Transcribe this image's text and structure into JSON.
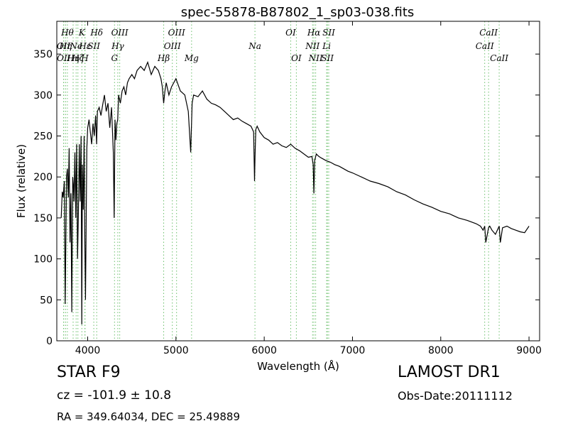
{
  "chart_data": {
    "type": "line",
    "title": "spec-55878-B87802_1_sp03-038.fits",
    "xlabel": "Wavelength (Å)",
    "ylabel": "Flux (relative)",
    "xlim": [
      3650,
      9120
    ],
    "ylim": [
      0,
      390
    ],
    "xticks": [
      4000,
      5000,
      6000,
      7000,
      8000,
      9000
    ],
    "yticks": [
      0,
      50,
      100,
      150,
      200,
      250,
      300,
      350
    ],
    "grid": false,
    "line_color": "#000000",
    "marker_line_color": "#6bbf6b",
    "series": [
      {
        "x": [
          3700,
          3712,
          3722,
          3735,
          3745,
          3760,
          3770,
          3780,
          3790,
          3800,
          3810,
          3820,
          3830,
          3838,
          3845,
          3855,
          3865,
          3875,
          3885,
          3895,
          3905,
          3915,
          3925,
          3933,
          3940,
          3950,
          3960,
          3968,
          3975,
          3990,
          4000,
          4015,
          4030,
          4045,
          4060,
          4075,
          4090,
          4101,
          4110,
          4130,
          4150,
          4170,
          4190,
          4210,
          4230,
          4250,
          4270,
          4290,
          4300,
          4310,
          4320,
          4330,
          4340,
          4350,
          4370,
          4390,
          4410,
          4430,
          4450,
          4470,
          4500,
          4530,
          4560,
          4600,
          4640,
          4680,
          4720,
          4760,
          4800,
          4830,
          4845,
          4861,
          4875,
          4890,
          4920,
          4950,
          5000,
          5050,
          5100,
          5140,
          5167,
          5175,
          5183,
          5200,
          5250,
          5300,
          5350,
          5400,
          5450,
          5500,
          5550,
          5600,
          5650,
          5700,
          5750,
          5800,
          5850,
          5880,
          5890,
          5896,
          5905,
          5920,
          5950,
          6000,
          6050,
          6100,
          6150,
          6200,
          6250,
          6300,
          6350,
          6400,
          6450,
          6500,
          6540,
          6555,
          6563,
          6572,
          6590,
          6620,
          6650,
          6700,
          6750,
          6800,
          6850,
          6900,
          6950,
          7000,
          7100,
          7200,
          7300,
          7400,
          7500,
          7600,
          7700,
          7800,
          7900,
          8000,
          8100,
          8200,
          8300,
          8400,
          8450,
          8480,
          8498,
          8510,
          8542,
          8555,
          8580,
          8620,
          8662,
          8675,
          8700,
          8750,
          8800,
          8850,
          8900,
          8950,
          9000
        ],
        "values": [
          150,
          182,
          175,
          195,
          45,
          200,
          210,
          175,
          235,
          120,
          180,
          35,
          200,
          190,
          170,
          230,
          150,
          240,
          100,
          160,
          240,
          170,
          250,
          20,
          215,
          160,
          250,
          120,
          50,
          235,
          260,
          270,
          255,
          240,
          265,
          250,
          275,
          240,
          280,
          285,
          275,
          288,
          300,
          280,
          290,
          260,
          285,
          230,
          150,
          270,
          245,
          265,
          270,
          300,
          290,
          305,
          310,
          300,
          315,
          320,
          325,
          320,
          330,
          335,
          330,
          340,
          325,
          335,
          330,
          320,
          310,
          290,
          305,
          315,
          300,
          310,
          320,
          305,
          300,
          280,
          230,
          260,
          290,
          300,
          298,
          305,
          295,
          290,
          288,
          285,
          280,
          275,
          270,
          272,
          268,
          265,
          262,
          255,
          195,
          225,
          258,
          262,
          255,
          248,
          245,
          240,
          242,
          238,
          236,
          240,
          235,
          232,
          228,
          224,
          225,
          215,
          180,
          220,
          228,
          225,
          223,
          220,
          218,
          215,
          213,
          210,
          207,
          205,
          200,
          195,
          192,
          188,
          182,
          178,
          172,
          167,
          163,
          158,
          155,
          150,
          147,
          143,
          140,
          135,
          140,
          120,
          138,
          140,
          135,
          130,
          140,
          120,
          138,
          140,
          137,
          135,
          133,
          132,
          140
        ]
      }
    ],
    "lines": [
      {
        "x": 3727,
        "label": "OII",
        "row": 2
      },
      {
        "x": 3729,
        "label": "OII",
        "row": 3
      },
      {
        "x": 3750,
        "label": "Hη",
        "row": 4
      },
      {
        "x": 3770,
        "label": "Hθ",
        "row": 1
      },
      {
        "x": 3835,
        "label": "Hη",
        "row": 3
      },
      {
        "x": 3869,
        "label": "Ne",
        "row": 2
      },
      {
        "x": 3889,
        "label": "Hζ",
        "row": 3
      },
      {
        "x": 3934,
        "label": "K",
        "row": 1
      },
      {
        "x": 3968,
        "label": "H",
        "row": 3
      },
      {
        "x": 3970,
        "label": "Hε",
        "row": 2
      },
      {
        "x": 4069,
        "label": "SII",
        "row": 2
      },
      {
        "x": 4102,
        "label": "Hδ",
        "row": 1
      },
      {
        "x": 4304,
        "label": "G",
        "row": 3
      },
      {
        "x": 4341,
        "label": "Hγ",
        "row": 2
      },
      {
        "x": 4363,
        "label": "OIII",
        "row": 1
      },
      {
        "x": 4861,
        "label": "Hβ",
        "row": 3
      },
      {
        "x": 4959,
        "label": "OIII",
        "row": 2
      },
      {
        "x": 5007,
        "label": "OIII",
        "row": 1
      },
      {
        "x": 5177,
        "label": "Mg",
        "row": 3
      },
      {
        "x": 5895,
        "label": "Na",
        "row": 2
      },
      {
        "x": 6300,
        "label": "OI",
        "row": 1
      },
      {
        "x": 6364,
        "label": "OI",
        "row": 3
      },
      {
        "x": 6548,
        "label": "NII",
        "row": 2
      },
      {
        "x": 6563,
        "label": "Hα",
        "row": 1
      },
      {
        "x": 6583,
        "label": "NII",
        "row": 3
      },
      {
        "x": 6707,
        "label": "Li",
        "row": 2
      },
      {
        "x": 6716,
        "label": "SII",
        "row": 3
      },
      {
        "x": 6731,
        "label": "SII",
        "row": 1
      },
      {
        "x": 8498,
        "label": "CaII",
        "row": 2
      },
      {
        "x": 8542,
        "label": "CaII",
        "row": 1
      },
      {
        "x": 8662,
        "label": "CaII",
        "row": 3
      }
    ]
  },
  "info": {
    "obj_class": "STAR   F9",
    "redshift": "cz = -101.9  ± 10.8",
    "radec": "RA = 349.64034, DEC = 25.49889",
    "survey": "LAMOST DR1",
    "obs_date": "Obs-Date:20111112"
  }
}
